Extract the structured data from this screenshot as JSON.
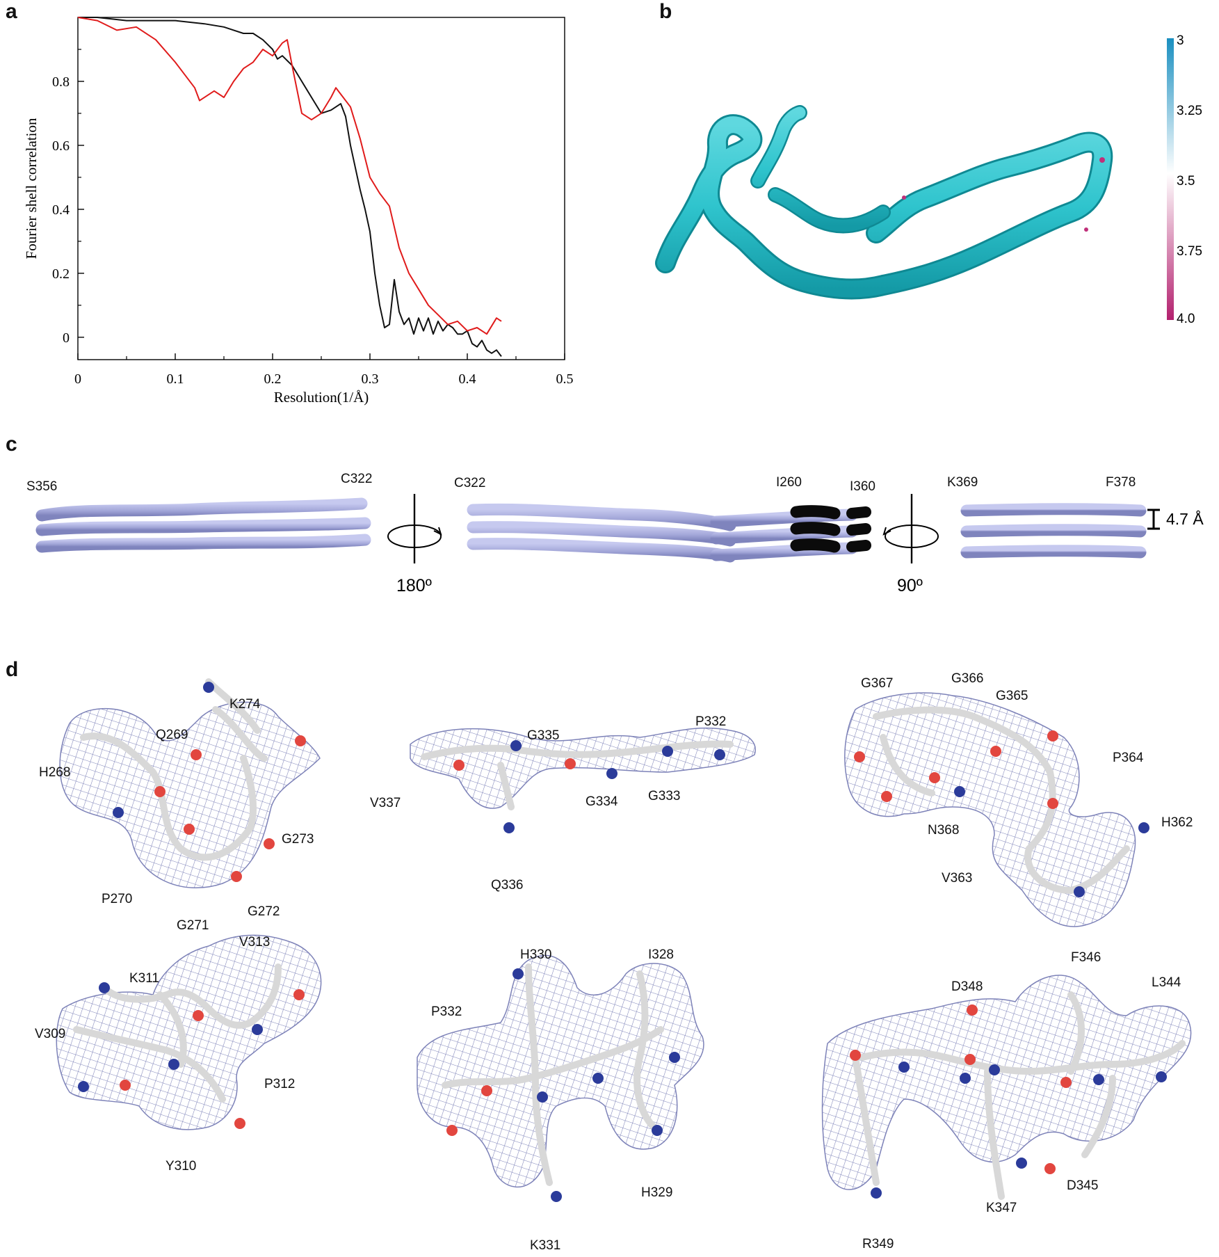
{
  "panels": {
    "a": "a",
    "b": "b",
    "c": "c",
    "d": "d"
  },
  "chart_data": {
    "type": "line",
    "title": "",
    "xlabel": "Resolution(1/Å)",
    "ylabel": "Fourier shell correlation",
    "xlim": [
      0,
      0.5
    ],
    "ylim": [
      -0.07,
      1.0
    ],
    "xticks": [
      "0",
      "0.1",
      "0.2",
      "0.3",
      "0.4",
      "0.5"
    ],
    "yticks": [
      "0",
      "0.2",
      "0.4",
      "0.6",
      "0.8"
    ],
    "grid": false,
    "series": [
      {
        "color": "#111111",
        "x": [
          0,
          0.02,
          0.05,
          0.08,
          0.1,
          0.13,
          0.15,
          0.16,
          0.17,
          0.18,
          0.19,
          0.2,
          0.205,
          0.21,
          0.22,
          0.23,
          0.24,
          0.25,
          0.26,
          0.27,
          0.275,
          0.28,
          0.29,
          0.295,
          0.3,
          0.305,
          0.31,
          0.315,
          0.32,
          0.325,
          0.33,
          0.335,
          0.34,
          0.345,
          0.35,
          0.355,
          0.36,
          0.365,
          0.37,
          0.375,
          0.38,
          0.385,
          0.39,
          0.395,
          0.4,
          0.405,
          0.41,
          0.415,
          0.42,
          0.425,
          0.43,
          0.435
        ],
        "y": [
          1.0,
          1.0,
          0.99,
          0.99,
          0.99,
          0.98,
          0.97,
          0.96,
          0.95,
          0.95,
          0.93,
          0.9,
          0.87,
          0.88,
          0.85,
          0.8,
          0.75,
          0.7,
          0.71,
          0.73,
          0.69,
          0.6,
          0.46,
          0.4,
          0.33,
          0.2,
          0.1,
          0.03,
          0.04,
          0.18,
          0.08,
          0.04,
          0.06,
          0.01,
          0.06,
          0.02,
          0.06,
          0.01,
          0.05,
          0.02,
          0.04,
          0.03,
          0.01,
          0.01,
          0.02,
          -0.02,
          -0.03,
          -0.01,
          -0.04,
          -0.05,
          -0.04,
          -0.06
        ]
      },
      {
        "color": "#e01b1b",
        "x": [
          0,
          0.02,
          0.04,
          0.06,
          0.08,
          0.1,
          0.12,
          0.125,
          0.14,
          0.15,
          0.16,
          0.17,
          0.18,
          0.19,
          0.2,
          0.21,
          0.215,
          0.22,
          0.23,
          0.24,
          0.25,
          0.26,
          0.265,
          0.27,
          0.28,
          0.29,
          0.3,
          0.31,
          0.32,
          0.33,
          0.34,
          0.35,
          0.36,
          0.37,
          0.38,
          0.39,
          0.4,
          0.41,
          0.42,
          0.43,
          0.435
        ],
        "y": [
          1.0,
          0.99,
          0.96,
          0.97,
          0.93,
          0.86,
          0.78,
          0.74,
          0.77,
          0.75,
          0.8,
          0.84,
          0.86,
          0.9,
          0.88,
          0.92,
          0.93,
          0.85,
          0.7,
          0.68,
          0.7,
          0.75,
          0.78,
          0.76,
          0.72,
          0.62,
          0.5,
          0.45,
          0.41,
          0.28,
          0.2,
          0.15,
          0.1,
          0.07,
          0.04,
          0.05,
          0.02,
          0.03,
          0.01,
          0.06,
          0.05
        ]
      }
    ]
  },
  "colorbar": {
    "ticks": [
      "3",
      "3.25",
      "3.5",
      "3.75",
      "4.0"
    ],
    "top_color": "#1a8fc0",
    "mid_color": "#ffffff",
    "bottom_color": "#b3206e"
  },
  "panel_c": {
    "left": {
      "start": "S356",
      "end": "C322",
      "rotation": "180º"
    },
    "middle": {
      "start": "C322",
      "mark1": "I260",
      "mark2": "I360"
    },
    "right": {
      "start": "K369",
      "end": "F378",
      "rotation": "90º",
      "spacing": "4.7 Å"
    }
  },
  "panel_d": {
    "panel1": [
      "K274",
      "Q269",
      "H268",
      "G273",
      "P270",
      "G271",
      "G272"
    ],
    "panel2": [
      "G335",
      "P332",
      "V337",
      "G334",
      "G333",
      "Q336"
    ],
    "panel3": [
      "G367",
      "G366",
      "G365",
      "P364",
      "H362",
      "N368",
      "V363"
    ],
    "panel4": [
      "V313",
      "K311",
      "V309",
      "P312",
      "Y310"
    ],
    "panel5": [
      "H330",
      "I328",
      "P332",
      "H329",
      "K331"
    ],
    "panel6": [
      "F346",
      "D348",
      "L344",
      "K347",
      "D345",
      "R349"
    ]
  }
}
